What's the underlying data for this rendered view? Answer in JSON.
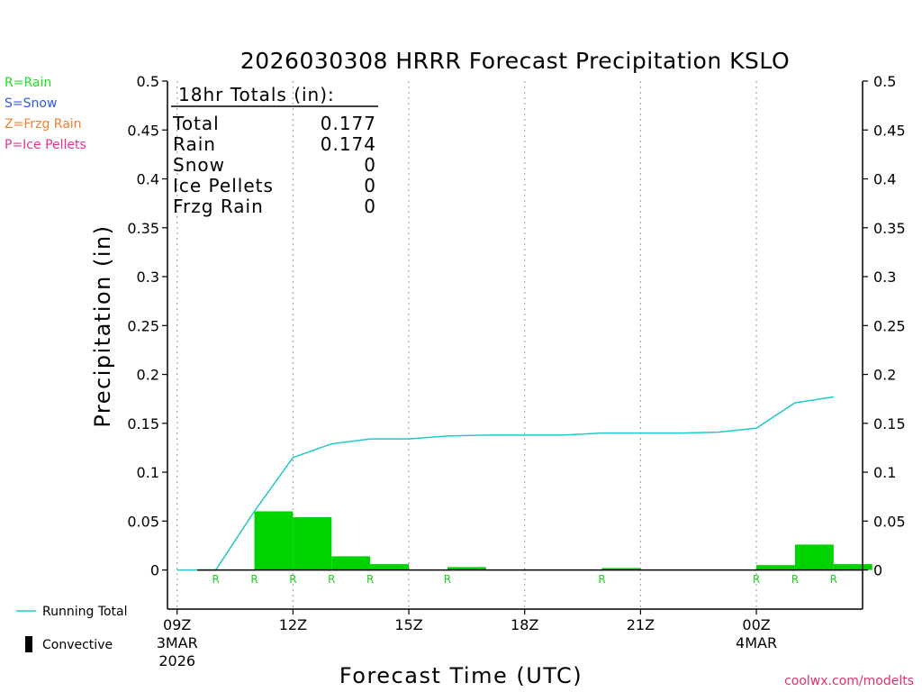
{
  "chart_data": {
    "type": "bar",
    "title": "2026030308 HRRR Forecast Precipitation KSLO",
    "xlabel": "Forecast Time (UTC)",
    "ylabel": "Precipitation (in)",
    "ylim": [
      -0.04,
      0.5
    ],
    "y_ticks": [
      "0.5",
      "0.45",
      "0.4",
      "0.35",
      "0.3",
      "0.25",
      "0.2",
      "0.15",
      "0.1",
      "0.05",
      "0"
    ],
    "x_ticks": [
      {
        "hour": 9,
        "label": "09Z",
        "sub1": "3MAR",
        "sub2": "2026"
      },
      {
        "hour": 12,
        "label": "12Z",
        "sub1": "",
        "sub2": ""
      },
      {
        "hour": 15,
        "label": "15Z",
        "sub1": "",
        "sub2": ""
      },
      {
        "hour": 18,
        "label": "18Z",
        "sub1": "",
        "sub2": ""
      },
      {
        "hour": 21,
        "label": "21Z",
        "sub1": "",
        "sub2": ""
      },
      {
        "hour": 24,
        "label": "00Z",
        "sub1": "4MAR",
        "sub2": ""
      }
    ],
    "xlim_hours": [
      8.75,
      26.75
    ],
    "grid": "vertical dotted",
    "bars": {
      "hours": [
        10,
        11,
        12,
        13,
        14,
        15,
        16,
        17,
        18,
        19,
        20,
        21,
        22,
        23,
        24,
        25,
        26
      ],
      "values": [
        0.0,
        0.06,
        0.054,
        0.014,
        0.006,
        0.0,
        0.003,
        0.0,
        0.0,
        0.0,
        0.002,
        0.0,
        0.0,
        0.0,
        0.005,
        0.026,
        0.006
      ],
      "color": "#00d400"
    },
    "running_total": {
      "name": "Running Total",
      "hours": [
        9,
        10,
        11,
        12,
        13,
        14,
        15,
        16,
        17,
        18,
        19,
        20,
        21,
        22,
        23,
        24,
        25,
        26
      ],
      "values": [
        0.0,
        0.0,
        0.06,
        0.115,
        0.129,
        0.134,
        0.134,
        0.137,
        0.138,
        0.138,
        0.138,
        0.14,
        0.14,
        0.14,
        0.141,
        0.145,
        0.171,
        0.177
      ],
      "color": "#22c8c8"
    },
    "ptype_markers": {
      "hours": [
        10,
        11,
        12,
        13,
        14,
        16,
        20,
        24,
        25,
        26
      ],
      "label": "R",
      "color": "#22cc22"
    },
    "totals_box": {
      "header": "18hr Totals (in):",
      "rows": [
        {
          "label": "Total",
          "value": "0.177"
        },
        {
          "label": "Rain",
          "value": "0.174"
        },
        {
          "label": "Snow",
          "value": "0"
        },
        {
          "label": "Ice Pellets",
          "value": "0"
        },
        {
          "label": "Frzg Rain",
          "value": "0"
        }
      ]
    },
    "ptype_legend": [
      {
        "text": "R=Rain",
        "color": "#22dd22"
      },
      {
        "text": "S=Snow",
        "color": "#3355ee"
      },
      {
        "text": "Z=Frzg Rain",
        "color": "#f08030"
      },
      {
        "text": "P=Ice Pellets",
        "color": "#e83090"
      }
    ],
    "series_legend": [
      {
        "text": "Running Total",
        "kind": "line",
        "color": "#22c8c8"
      },
      {
        "text": "Convective",
        "kind": "bar",
        "color": "#000000"
      }
    ],
    "credit": {
      "text": "coolwx.com/modelts",
      "color": "#e0306a"
    }
  }
}
